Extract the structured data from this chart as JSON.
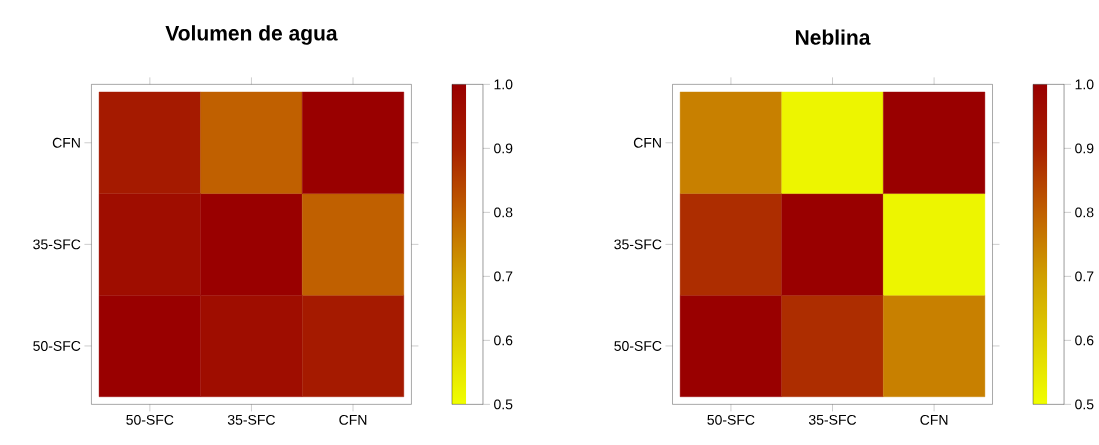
{
  "chart_data": [
    {
      "type": "heatmap",
      "title": "Volumen de agua",
      "categories": [
        "50-SFC",
        "35-SFC",
        "CFN"
      ],
      "y_categories": [
        "CFN",
        "35-SFC",
        "50-SFC"
      ],
      "cells": [
        [
          0.92,
          0.8,
          1.0
        ],
        [
          0.96,
          1.0,
          0.8
        ],
        [
          1.0,
          0.96,
          0.92
        ]
      ],
      "clim": [
        0.5,
        1.0
      ],
      "cticks": [
        0.5,
        0.6,
        0.7,
        0.8,
        0.9,
        {
          "value": 1.0,
          "label": "1.0"
        }
      ]
    },
    {
      "type": "heatmap",
      "title": "Neblina",
      "categories": [
        "50-SFC",
        "35-SFC",
        "CFN"
      ],
      "y_categories": [
        "CFN",
        "35-SFC",
        "50-SFC"
      ],
      "cells": [
        [
          0.75,
          0.52,
          1.0
        ],
        [
          0.88,
          1.0,
          0.52
        ],
        [
          1.0,
          0.88,
          0.75
        ]
      ],
      "clim": [
        0.5,
        1.0
      ],
      "cticks": [
        0.5,
        0.6,
        0.7,
        0.8,
        0.9,
        {
          "value": 1.0,
          "label": "1.0"
        }
      ]
    }
  ]
}
